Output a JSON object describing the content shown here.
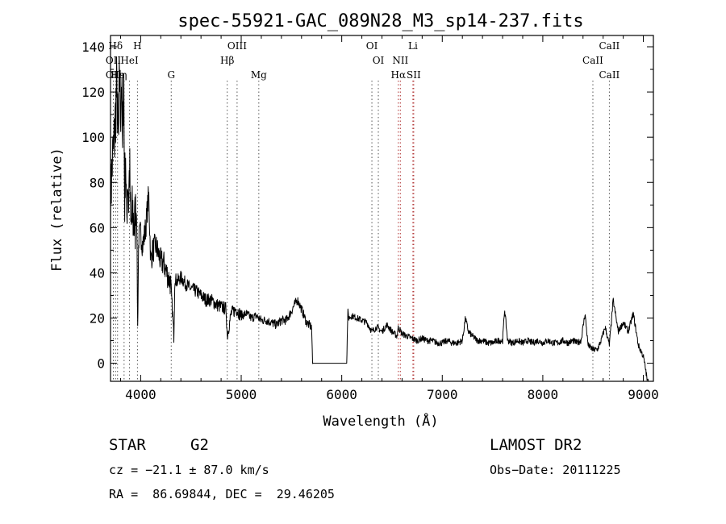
{
  "chart_data": {
    "type": "line",
    "title": "spec-55921-GAC_089N28_M3_sp14-237.fits",
    "xlabel": "Wavelength (Å)",
    "ylabel": "Flux (relative)",
    "xlim": [
      3700,
      9100
    ],
    "ylim": [
      -8,
      145
    ],
    "xticks": [
      4000,
      5000,
      6000,
      7000,
      8000,
      9000
    ],
    "yticks": [
      0,
      20,
      40,
      60,
      80,
      100,
      120,
      140
    ],
    "grid": false,
    "series": [
      {
        "x": [
          3700,
          3720,
          3740,
          3760,
          3780,
          3790,
          3800,
          3810,
          3820,
          3830,
          3840,
          3850,
          3860,
          3870,
          3880,
          3890,
          3900,
          3920,
          3940,
          3960,
          3970,
          3980,
          4000,
          4020,
          4050,
          4080,
          4100,
          4120,
          4150,
          4180,
          4200,
          4230,
          4260,
          4300,
          4330,
          4340,
          4360,
          4400,
          4450,
          4500,
          4550,
          4600,
          4650,
          4700,
          4750,
          4800,
          4850,
          4861,
          4900,
          4950,
          5000,
          5050,
          5100,
          5150,
          5200,
          5250,
          5300,
          5350,
          5400,
          5450,
          5500,
          5530,
          5560,
          5600,
          5650,
          5700,
          5710,
          5720,
          6050,
          6060,
          6070,
          6100,
          6150,
          6200,
          6250,
          6300,
          6350,
          6400,
          6450,
          6500,
          6550,
          6563,
          6600,
          6650,
          6700,
          6750,
          6800,
          6850,
          6900,
          6950,
          7000,
          7050,
          7100,
          7150,
          7200,
          7230,
          7260,
          7300,
          7350,
          7400,
          7450,
          7500,
          7550,
          7600,
          7620,
          7650,
          7700,
          7750,
          7800,
          7850,
          7900,
          7950,
          8000,
          8050,
          8100,
          8150,
          8200,
          8250,
          8300,
          8340,
          8380,
          8420,
          8450,
          8498,
          8542,
          8580,
          8620,
          8662,
          8700,
          8750,
          8800,
          8850,
          8900,
          8950,
          9000,
          9020,
          9040,
          9050
        ],
        "y": [
          72,
          90,
          100,
          122,
          95,
          132,
          110,
          128,
          88,
          140,
          70,
          95,
          60,
          85,
          72,
          88,
          58,
          66,
          60,
          70,
          15,
          55,
          58,
          52,
          60,
          75,
          45,
          50,
          52,
          48,
          45,
          44,
          40,
          35,
          12,
          38,
          36,
          38,
          35,
          33,
          32,
          30,
          28,
          28,
          26,
          25,
          24,
          12,
          22,
          24,
          21,
          22,
          20,
          21,
          19,
          19,
          18,
          17,
          19,
          19,
          23,
          26,
          28,
          24,
          18,
          16,
          0,
          0,
          0,
          23,
          20,
          21,
          20,
          19,
          18,
          14,
          16,
          14,
          17,
          14,
          12,
          16,
          13,
          12,
          11,
          10,
          11,
          10,
          10,
          9,
          9,
          10,
          9,
          9,
          10,
          20,
          14,
          12,
          10,
          10,
          9,
          9,
          10,
          10,
          24,
          10,
          9,
          10,
          9,
          10,
          9,
          10,
          9,
          10,
          9,
          9,
          10,
          9,
          10,
          9,
          10,
          22,
          8,
          6,
          6,
          10,
          16,
          8,
          28,
          14,
          18,
          14,
          22,
          8,
          3,
          -2,
          -8,
          -8
        ]
      }
    ],
    "line_markers": [
      {
        "name": "Hδ",
        "x": 3750,
        "row": 1
      },
      {
        "name": "OII",
        "x": 3728,
        "row": 2
      },
      {
        "name": "OII",
        "x": 3728,
        "row": 3
      },
      {
        "name": "Hε",
        "x": 3770,
        "row": 3
      },
      {
        "name": "η",
        "x": 3835,
        "row": 3
      },
      {
        "name": "HeI",
        "x": 3889,
        "row": 2
      },
      {
        "name": "H",
        "x": 3968,
        "row": 1
      },
      {
        "name": "G",
        "x": 4304,
        "row": 3
      },
      {
        "name": "OIII",
        "x": 4959,
        "row": 1
      },
      {
        "name": "Hβ",
        "x": 4861,
        "row": 2
      },
      {
        "name": "Mg",
        "x": 5175,
        "row": 3
      },
      {
        "name": "OI",
        "x": 6300,
        "row": 1
      },
      {
        "name": "OI",
        "x": 6364,
        "row": 2
      },
      {
        "name": "NII",
        "x": 6583,
        "row": 2
      },
      {
        "name": "Hα",
        "x": 6563,
        "row": 3
      },
      {
        "name": "Li",
        "x": 6708,
        "row": 1
      },
      {
        "name": "SII",
        "x": 6716,
        "row": 3
      },
      {
        "name": "CaII",
        "x": 8662,
        "row": 1
      },
      {
        "name": "CaII",
        "x": 8498,
        "row": 2
      },
      {
        "name": "CaII",
        "x": 8662,
        "row": 3
      }
    ]
  },
  "footer": {
    "object_type": "STAR",
    "subclass": "G2",
    "survey": "LAMOST DR2",
    "cz": "cz = −21.1 ± 87.0 km/s",
    "obs_date": "Obs−Date: 20111225",
    "radec": "RA =  86.69844, DEC =  29.46205"
  }
}
